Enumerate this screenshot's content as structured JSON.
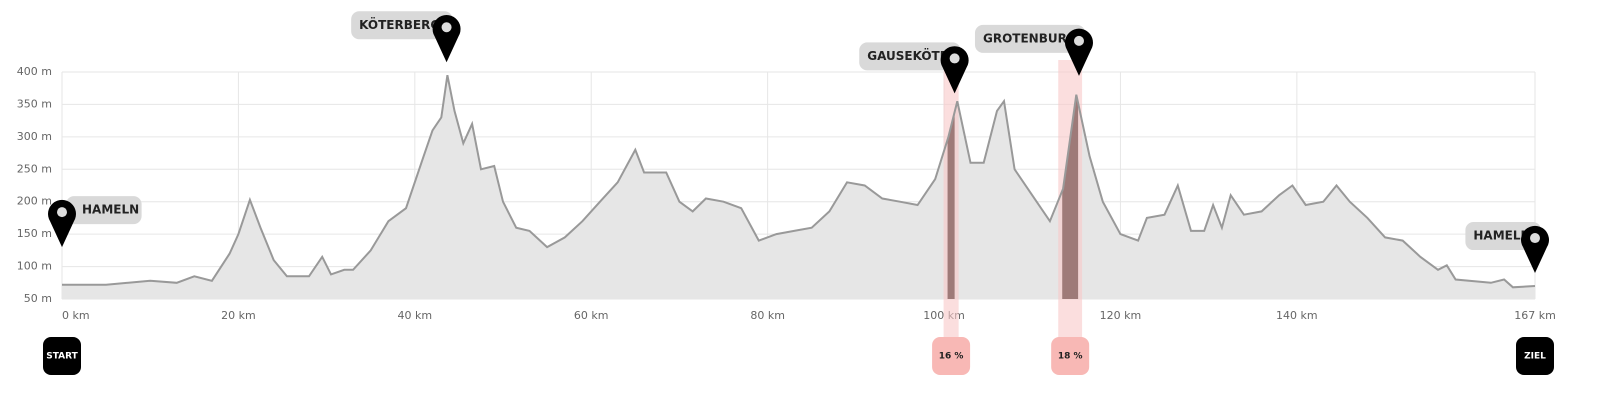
{
  "chart_data": {
    "type": "area",
    "x": [
      0,
      5,
      10,
      13,
      15,
      17,
      19,
      20,
      21.3,
      22.5,
      24,
      25.5,
      28,
      29.5,
      30.5,
      32,
      33,
      35,
      37,
      39,
      41,
      42,
      43,
      43.7,
      44.5,
      45.5,
      46.5,
      47.5,
      49,
      50,
      51.5,
      53,
      55,
      57,
      59,
      61,
      63,
      65,
      66,
      67,
      68.5,
      70,
      71.5,
      73,
      75,
      77,
      79,
      81,
      83,
      85,
      87,
      89,
      91,
      93,
      95,
      97,
      99,
      100.5,
      101.5,
      103,
      104.5,
      106,
      106.8,
      108,
      110,
      112,
      113.5,
      115,
      116.5,
      118,
      120,
      122,
      123,
      125,
      126.5,
      128,
      129.5,
      130.5,
      131.5,
      132.5,
      134,
      136,
      138,
      139.5,
      141,
      143,
      144.5,
      146,
      148,
      150,
      152,
      154,
      156,
      157,
      158,
      162,
      163.5,
      164.5,
      167
    ],
    "values": [
      72,
      72,
      78,
      75,
      85,
      78,
      120,
      150,
      203,
      160,
      110,
      85,
      85,
      115,
      88,
      95,
      95,
      125,
      170,
      190,
      270,
      310,
      330,
      395,
      340,
      290,
      320,
      250,
      255,
      200,
      160,
      155,
      130,
      145,
      170,
      200,
      230,
      280,
      245,
      245,
      245,
      200,
      185,
      205,
      200,
      190,
      140,
      150,
      155,
      160,
      185,
      230,
      225,
      205,
      200,
      195,
      235,
      300,
      355,
      260,
      260,
      340,
      355,
      250,
      210,
      170,
      220,
      365,
      270,
      200,
      150,
      140,
      175,
      180,
      225,
      155,
      155,
      195,
      160,
      210,
      180,
      185,
      210,
      225,
      195,
      200,
      225,
      200,
      175,
      145,
      140,
      115,
      95,
      102,
      80,
      75,
      80,
      68,
      70
    ],
    "line_color": "#999999",
    "fill_color": "#e6e6e6",
    "xlim": [
      0,
      167
    ],
    "ylim": [
      50,
      400
    ],
    "xticks": [
      {
        "value": 0,
        "label": "0 km"
      },
      {
        "value": 20,
        "label": "20 km"
      },
      {
        "value": 40,
        "label": "40 km"
      },
      {
        "value": 60,
        "label": "60 km"
      },
      {
        "value": 80,
        "label": "80 km"
      },
      {
        "value": 100,
        "label": "100 km"
      },
      {
        "value": 120,
        "label": "120 km"
      },
      {
        "value": 140,
        "label": "140 km"
      },
      {
        "value": 167,
        "label": "167 km"
      }
    ],
    "yticks": [
      {
        "value": 50,
        "label": "50 m"
      },
      {
        "value": 100,
        "label": "100 m"
      },
      {
        "value": 150,
        "label": "150 m"
      },
      {
        "value": 200,
        "label": "200 m"
      },
      {
        "value": 250,
        "label": "250 m"
      },
      {
        "value": 300,
        "label": "300 m"
      },
      {
        "value": 350,
        "label": "350 m"
      },
      {
        "value": 400,
        "label": "400 m"
      }
    ],
    "grid": true,
    "pins": [
      {
        "label": "HAMELN",
        "x": 0,
        "y": 130
      },
      {
        "label": "KÖTERBERG",
        "x": 43.6,
        "y": 415
      },
      {
        "label": "GAUSEKÖTE",
        "x": 101.2,
        "y": 367
      },
      {
        "label": "GROTENBURG",
        "x": 115.3,
        "y": 394
      },
      {
        "label": "HAMELN",
        "x": 167,
        "y": 90
      }
    ],
    "steep_sections": [
      {
        "label": "16 %",
        "x_start": 100.4,
        "x_end": 101.2
      },
      {
        "label": "18 %",
        "x_start": 113.4,
        "x_end": 115.2
      }
    ],
    "start_label": "START",
    "end_label": "ZIEL"
  }
}
